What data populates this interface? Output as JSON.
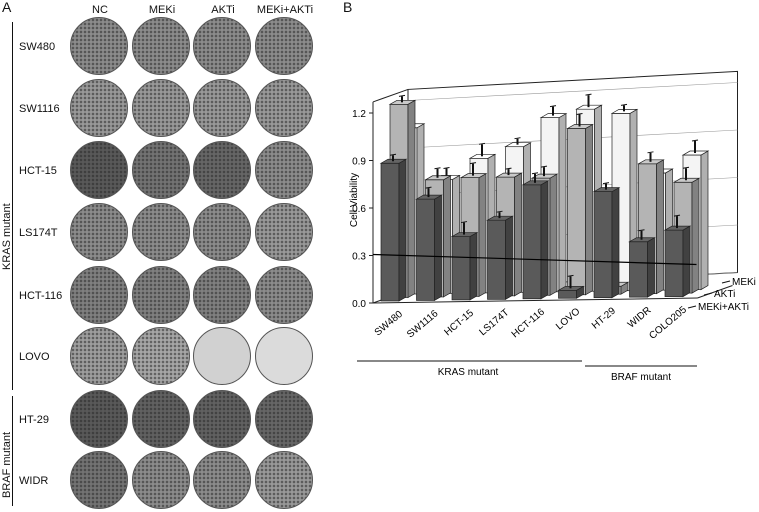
{
  "panel_a": {
    "letter": "A",
    "columns": [
      "NC",
      "MEKi",
      "AKTi",
      "MEKi+AKTi"
    ],
    "rows": [
      "SW480",
      "SW1116",
      "HCT-15",
      "LS174T",
      "HCT-116",
      "LOVO",
      "HT-29",
      "WIDR"
    ],
    "groups": {
      "kras": "KRAS mutant",
      "braf": "BRAF mutant"
    }
  },
  "panel_b": {
    "letter": "B"
  },
  "chart_data": {
    "type": "bar",
    "title": "",
    "ylabel": "Cell Viability",
    "ylim": [
      0,
      1.2
    ],
    "yticks": [
      "0.0",
      "0.3",
      "0.6",
      "0.9",
      "1.2"
    ],
    "reference_line": 0.3,
    "categories": [
      "SW480",
      "SW1116",
      "HCT-15",
      "LS174T",
      "HCT-116",
      "LOVO",
      "HT-29",
      "WIDR",
      "COLO205"
    ],
    "groups": [
      {
        "label": "KRAS mutant",
        "categories": [
          "SW480",
          "SW1116",
          "HCT-15",
          "LS174T",
          "HCT-116",
          "LOVO"
        ]
      },
      {
        "label": "BRAF mutant",
        "categories": [
          "HT-29",
          "WIDR",
          "COLO205"
        ]
      }
    ],
    "series": [
      {
        "name": "MEKi+AKTi",
        "color": "#5a5a5a",
        "values": [
          0.87,
          0.64,
          0.4,
          0.5,
          0.72,
          0.05,
          0.67,
          0.35,
          0.42
        ]
      },
      {
        "name": "AKTi",
        "color": "#b4b4b4",
        "values": [
          1.22,
          0.74,
          0.75,
          0.75,
          0.74,
          1.05,
          0.05,
          0.82,
          0.7
        ]
      },
      {
        "name": "MEKi",
        "color": "#f4f4f4",
        "values": [
          1.05,
          0.72,
          0.85,
          0.92,
          1.1,
          1.15,
          1.12,
          0.74,
          0.85
        ]
      }
    ]
  }
}
